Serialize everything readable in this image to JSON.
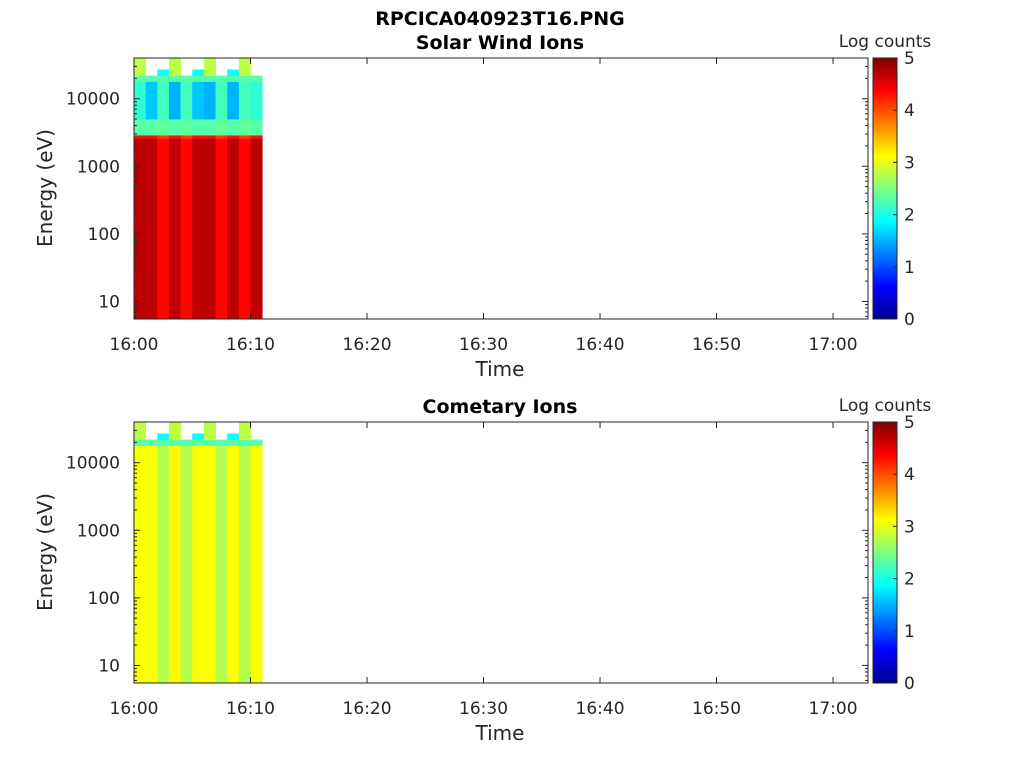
{
  "figure_title": "RPCICA040923T16.PNG",
  "chart_data": [
    {
      "type": "heatmap",
      "title": "Solar Wind Ions",
      "xlabel": "Time",
      "ylabel": "Energy (eV)",
      "y_scale": "log",
      "xlim": [
        "16:00",
        "17:03"
      ],
      "ylim": [
        5.5,
        40000
      ],
      "x_ticks": [
        "16:00",
        "16:10",
        "16:20",
        "16:30",
        "16:40",
        "16:50",
        "17:00"
      ],
      "y_ticks": [
        10,
        100,
        1000,
        10000
      ],
      "y_tick_labels": [
        "10",
        "100",
        "1000",
        "10000"
      ],
      "colorbar": {
        "label": "Log counts",
        "range": [
          0,
          5
        ],
        "ticks": [
          "0",
          "1",
          "2",
          "3",
          "4",
          "5"
        ],
        "colormap": "jet"
      },
      "time_columns": [
        "16:00",
        "16:01",
        "16:02",
        "16:03",
        "16:04",
        "16:05",
        "16:06",
        "16:07",
        "16:08",
        "16:09",
        "16:10"
      ],
      "data_end": "16:11",
      "energy_bands": [
        {
          "from": 5.5,
          "to": 2600,
          "values": [
            4.7,
            4.7,
            4.35,
            4.7,
            4.35,
            4.7,
            4.7,
            4.35,
            4.7,
            4.35,
            4.7
          ]
        },
        {
          "from": 2600,
          "to": 2900,
          "values": [
            4.3,
            4.3,
            4.1,
            4.3,
            4.1,
            4.3,
            4.3,
            4.1,
            4.3,
            4.1,
            4.3
          ]
        },
        {
          "from": 2900,
          "to": 5000,
          "values": [
            2.3,
            2.3,
            2.35,
            2.3,
            2.35,
            2.3,
            2.3,
            2.35,
            2.3,
            2.35,
            2.3
          ]
        },
        {
          "from": 5000,
          "to": 18000,
          "values": [
            2.1,
            1.6,
            2.2,
            1.5,
            2.2,
            1.6,
            1.5,
            2.2,
            1.5,
            2.2,
            2.1
          ]
        },
        {
          "from": 18000,
          "to": 22000,
          "values": [
            2.3,
            2.3,
            2.3,
            2.3,
            2.3,
            2.3,
            2.3,
            2.3,
            2.3,
            2.3,
            2.3
          ]
        },
        {
          "from": 22000,
          "to": 27000,
          "values": [
            2.8,
            null,
            1.9,
            2.8,
            null,
            1.9,
            2.8,
            null,
            1.9,
            2.8,
            null
          ]
        },
        {
          "from": 27000,
          "to": 40000,
          "values": [
            2.8,
            null,
            null,
            2.8,
            null,
            null,
            2.8,
            null,
            null,
            2.8,
            null
          ]
        }
      ]
    },
    {
      "type": "heatmap",
      "title": "Cometary Ions",
      "xlabel": "Time",
      "ylabel": "Energy (eV)",
      "y_scale": "log",
      "xlim": [
        "16:00",
        "17:03"
      ],
      "ylim": [
        5.5,
        40000
      ],
      "x_ticks": [
        "16:00",
        "16:10",
        "16:20",
        "16:30",
        "16:40",
        "16:50",
        "17:00"
      ],
      "y_ticks": [
        10,
        100,
        1000,
        10000
      ],
      "y_tick_labels": [
        "10",
        "100",
        "1000",
        "10000"
      ],
      "colorbar": {
        "label": "Log counts",
        "range": [
          0,
          5
        ],
        "ticks": [
          "0",
          "1",
          "2",
          "3",
          "4",
          "5"
        ],
        "colormap": "jet"
      },
      "time_columns": [
        "16:00",
        "16:01",
        "16:02",
        "16:03",
        "16:04",
        "16:05",
        "16:06",
        "16:07",
        "16:08",
        "16:09",
        "16:10"
      ],
      "data_end": "16:11",
      "energy_bands": [
        {
          "from": 5.5,
          "to": 18000,
          "values": [
            3.1,
            3.1,
            2.75,
            3.15,
            2.75,
            3.1,
            3.1,
            2.75,
            3.1,
            2.75,
            3.1
          ]
        },
        {
          "from": 18000,
          "to": 22000,
          "values": [
            2.3,
            2.3,
            2.3,
            2.3,
            2.3,
            2.3,
            2.3,
            2.3,
            2.3,
            2.3,
            2.3
          ]
        },
        {
          "from": 22000,
          "to": 27000,
          "values": [
            2.8,
            null,
            1.9,
            2.8,
            null,
            1.9,
            2.8,
            null,
            1.9,
            2.8,
            null
          ]
        },
        {
          "from": 27000,
          "to": 40000,
          "values": [
            2.8,
            null,
            null,
            2.8,
            null,
            null,
            2.8,
            null,
            null,
            2.8,
            null
          ]
        }
      ]
    }
  ]
}
